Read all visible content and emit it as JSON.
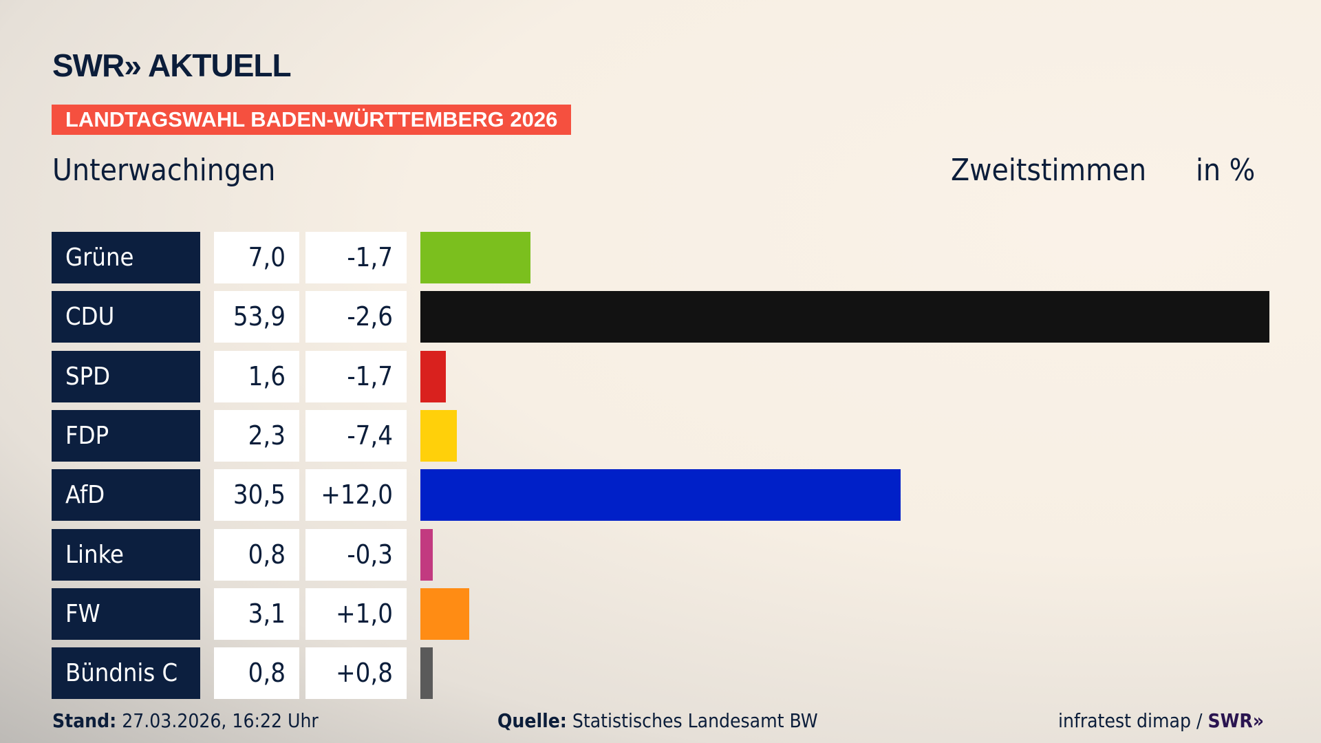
{
  "header": {
    "logo": "SWR» AKTUELL",
    "banner": "LANDTAGSWAHL BADEN-WÜRTTEMBERG 2026",
    "place": "Unterwachingen",
    "vote_type": "Zweitstimmen",
    "unit": "in %"
  },
  "chart_data": {
    "type": "bar",
    "orientation": "horizontal",
    "categories": [
      "Grüne",
      "CDU",
      "SPD",
      "FDP",
      "AfD",
      "Linke",
      "FW",
      "Bündnis C"
    ],
    "values": [
      7.0,
      53.9,
      1.6,
      2.3,
      30.5,
      0.8,
      3.1,
      0.8
    ],
    "value_labels": [
      "7,0",
      "53,9",
      "1,6",
      "2,3",
      "30,5",
      "0,8",
      "3,1",
      "0,8"
    ],
    "diff_labels": [
      "-1,7",
      "-2,6",
      "-1,7",
      "-7,4",
      "+12,0",
      "-0,3",
      "+1,0",
      "+0,8"
    ],
    "colors": [
      "#7bbf1e",
      "#121212",
      "#d9211e",
      "#ffd00a",
      "#0020c8",
      "#c23a80",
      "#ff8c14",
      "#5a5a5a"
    ],
    "xlim": [
      0,
      53.9
    ],
    "grid": false
  },
  "footer": {
    "stand_label": "Stand:",
    "stand_value": "27.03.2026, 16:22 Uhr",
    "source_label": "Quelle:",
    "source_value": "Statistisches Landesamt BW",
    "credit": "infratest dimap /",
    "credit_logo": "SWR»"
  }
}
